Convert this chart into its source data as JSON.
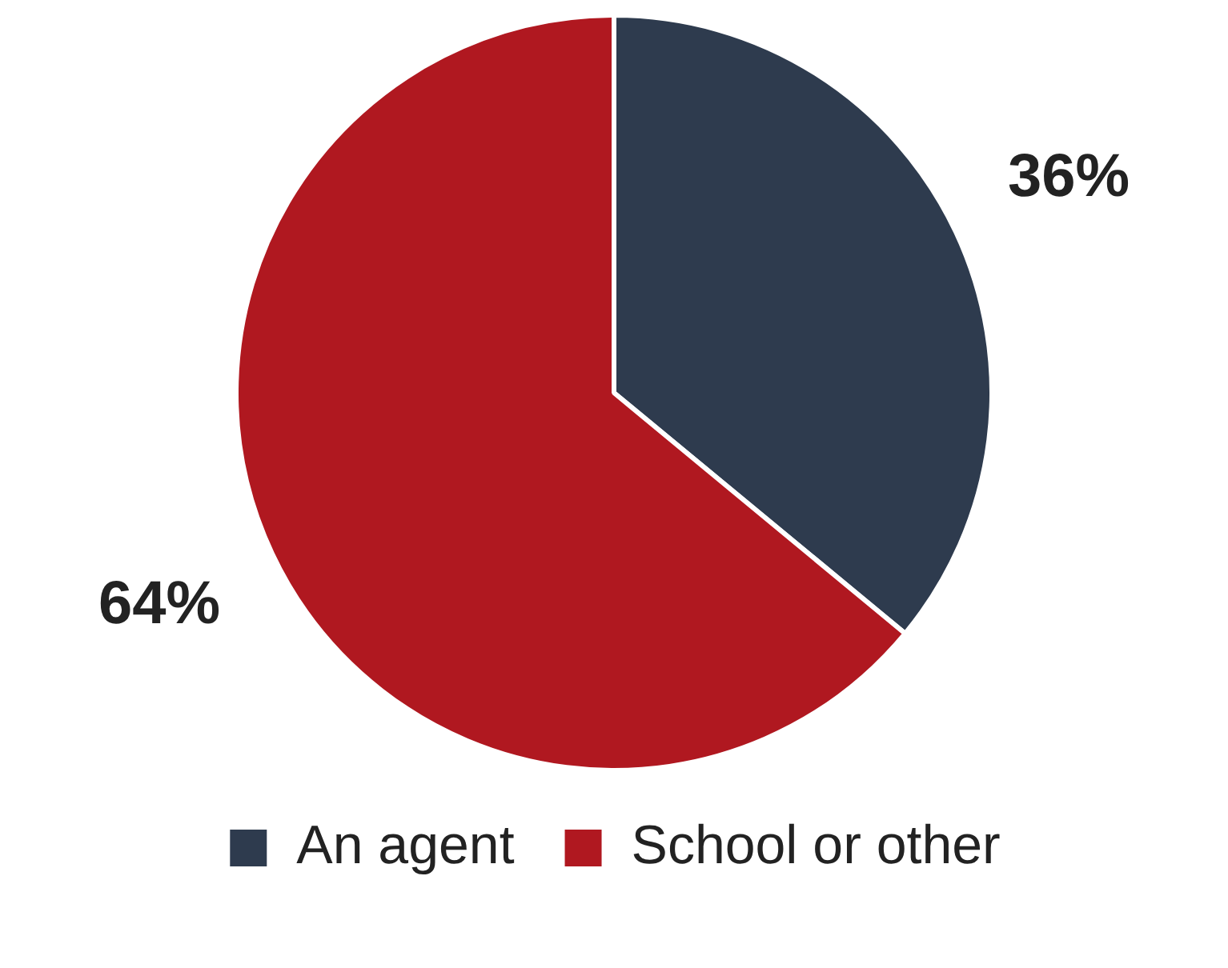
{
  "chart_data": {
    "type": "pie",
    "categories": [
      "An agent",
      "School or other"
    ],
    "values": [
      36,
      64
    ],
    "colors": [
      "#2e3b4e",
      "#b01820"
    ],
    "value_labels": [
      "36%",
      "64%"
    ],
    "legend": "bottom"
  }
}
